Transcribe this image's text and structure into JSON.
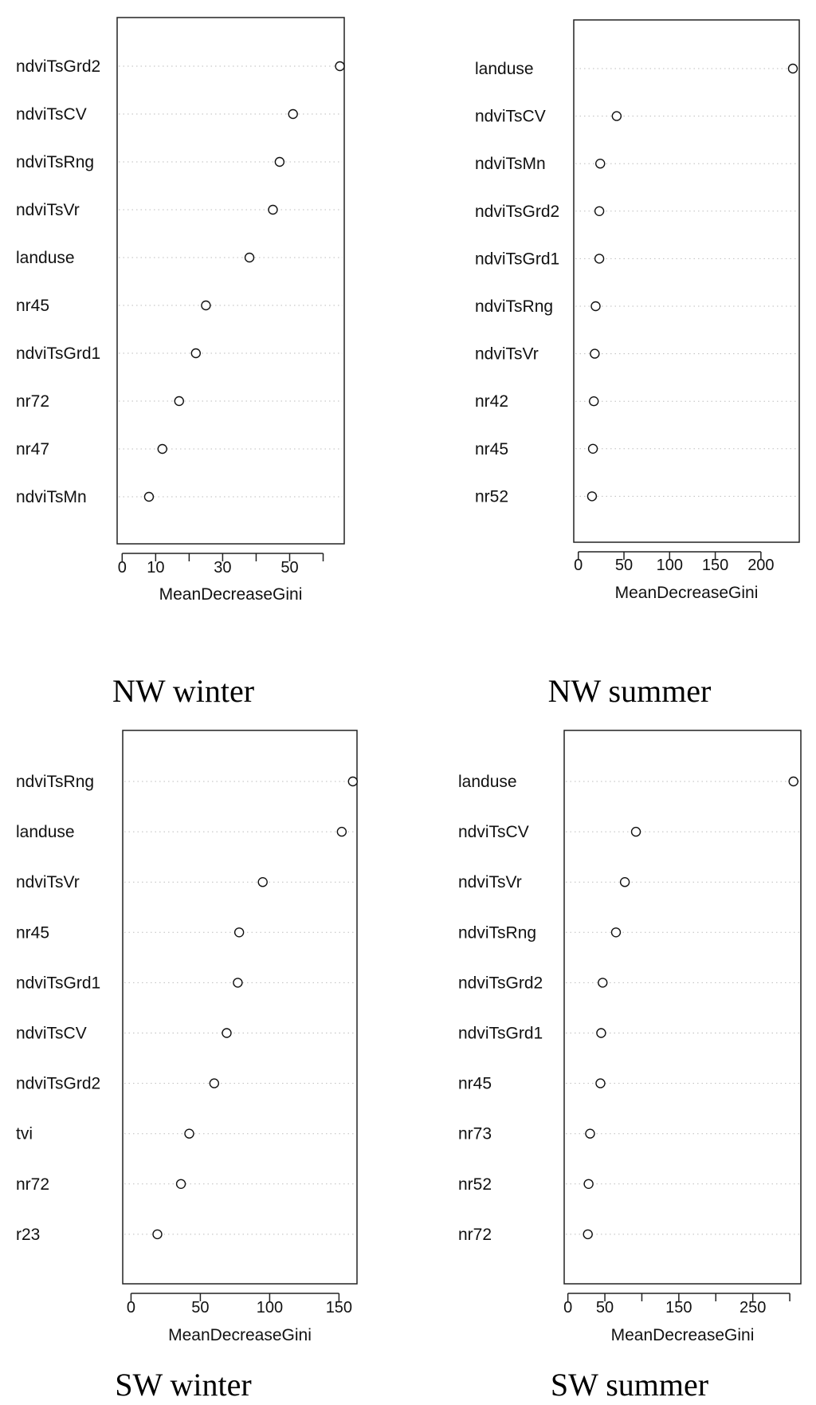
{
  "chart_data": [
    {
      "type": "scatter",
      "caption": "NW winter",
      "xlabel": "MeanDecreaseGini",
      "xlim": [
        -1.5,
        66.3
      ],
      "xticks": [
        0,
        10,
        30,
        50
      ],
      "minor_ticks": [
        20,
        40,
        60
      ],
      "categories": [
        "ndviTsGrd2",
        "ndviTsCV",
        "ndviTsRng",
        "ndviTsVr",
        "landuse",
        "nr45",
        "ndviTsGrd1",
        "nr72",
        "nr47",
        "ndviTsMn"
      ],
      "values": [
        65,
        51,
        47,
        45,
        38,
        25,
        22,
        17,
        12,
        8
      ]
    },
    {
      "type": "scatter",
      "caption": "NW summer",
      "xlabel": "MeanDecreaseGini",
      "xlim": [
        -5,
        242
      ],
      "xticks": [
        0,
        50,
        100,
        150,
        200
      ],
      "minor_ticks": [],
      "categories": [
        "landuse",
        "ndviTsCV",
        "ndviTsMn",
        "ndviTsGrd2",
        "ndviTsGrd1",
        "ndviTsRng",
        "ndviTsVr",
        "nr42",
        "nr45",
        "nr52"
      ],
      "values": [
        235,
        42,
        24,
        23,
        23,
        19,
        18,
        17,
        16,
        15
      ]
    },
    {
      "type": "scatter",
      "caption": "SW winter",
      "xlabel": "MeanDecreaseGini",
      "xlim": [
        -6,
        163
      ],
      "xticks": [
        0,
        50,
        100,
        150
      ],
      "minor_ticks": [],
      "categories": [
        "ndviTsRng",
        "landuse",
        "ndviTsVr",
        "nr45",
        "ndviTsGrd1",
        "ndviTsCV",
        "ndviTsGrd2",
        "tvi",
        "nr72",
        "r23"
      ],
      "values": [
        160,
        152,
        95,
        78,
        77,
        69,
        60,
        42,
        36,
        19
      ]
    },
    {
      "type": "scatter",
      "caption": "SW summer",
      "xlabel": "MeanDecreaseGini",
      "xlim": [
        -5,
        315
      ],
      "xticks": [
        0,
        50,
        150,
        250
      ],
      "minor_ticks": [
        100,
        200,
        300
      ],
      "categories": [
        "landuse",
        "ndviTsCV",
        "ndviTsVr",
        "ndviTsRng",
        "ndviTsGrd2",
        "ndviTsGrd1",
        "nr45",
        "nr73",
        "nr52",
        "nr72"
      ],
      "values": [
        305,
        92,
        77,
        65,
        47,
        45,
        44,
        30,
        28,
        27
      ]
    }
  ]
}
